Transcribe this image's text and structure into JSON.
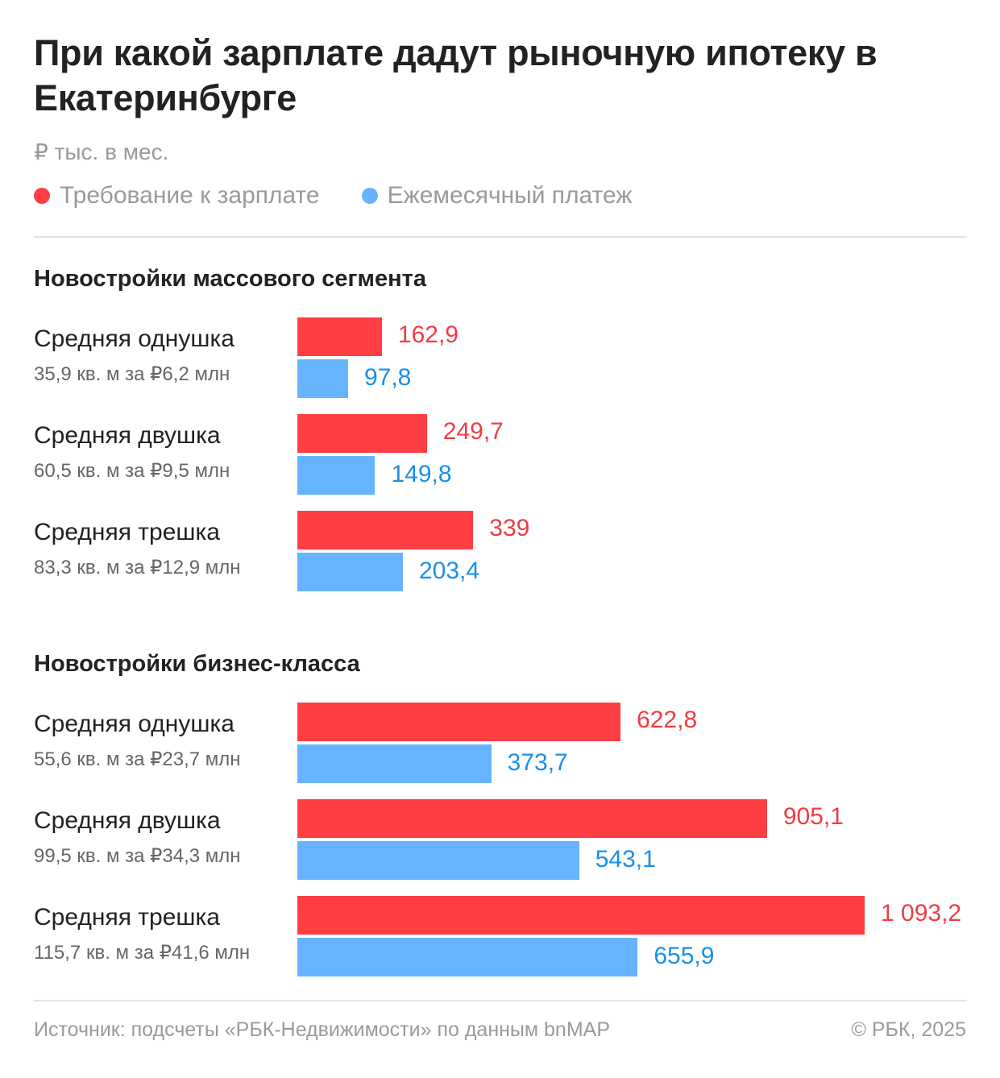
{
  "title": "При какой зарплате дадут рыночную ипотеку в Екатеринбурге",
  "unit": "₽ тыс. в мес.",
  "legend": [
    {
      "label": "Требование к зарплате",
      "color": "#ff3e44"
    },
    {
      "label": "Ежемесячный платеж",
      "color": "#66b4ff"
    }
  ],
  "colors": {
    "salary_bar": "#ff3e44",
    "payment_bar": "#66b4ff",
    "salary_text": "#f03c43",
    "payment_text": "#1a8fea"
  },
  "chart_data": {
    "type": "bar",
    "orientation": "horizontal",
    "series_names": [
      "Требование к зарплате",
      "Ежемесячный платеж"
    ],
    "groups": [
      {
        "title": "Новостройки массового сегмента",
        "rows": [
          {
            "label": "Средняя однушка",
            "sub": "35,9 кв. м за ₽6,2 млн",
            "salary": 162.9,
            "salary_label": "162,9",
            "payment": 97.8,
            "payment_label": "97,8"
          },
          {
            "label": "Средняя двушка",
            "sub": "60,5 кв. м за ₽9,5 млн",
            "salary": 249.7,
            "salary_label": "249,7",
            "payment": 149.8,
            "payment_label": "149,8"
          },
          {
            "label": "Средняя трешка",
            "sub": "83,3 кв. м за ₽12,9 млн",
            "salary": 339,
            "salary_label": "339",
            "payment": 203.4,
            "payment_label": "203,4"
          }
        ]
      },
      {
        "title": "Новостройки бизнес-класса",
        "rows": [
          {
            "label": "Средняя однушка",
            "sub": "55,6 кв. м за ₽23,7 млн",
            "salary": 622.8,
            "salary_label": "622,8",
            "payment": 373.7,
            "payment_label": "373,7"
          },
          {
            "label": "Средняя двушка",
            "sub": "99,5 кв. м за ₽34,3 млн",
            "salary": 905.1,
            "salary_label": "905,1",
            "payment": 543.1,
            "payment_label": "543,1"
          },
          {
            "label": "Средняя трешка",
            "sub": "115,7 кв. м за ₽41,6 млн",
            "salary": 1093.2,
            "salary_label": "1 093,2",
            "payment": 655.9,
            "payment_label": "655,9"
          }
        ]
      }
    ]
  },
  "footer": {
    "source": "Источник: подсчеты «РБК-Недвижимости» по данным bnMAP",
    "copyright": "© РБК, 2025"
  }
}
